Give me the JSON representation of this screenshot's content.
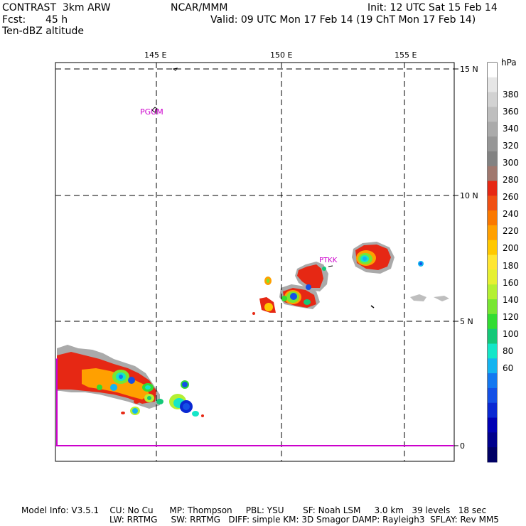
{
  "header": {
    "model": "CONTRAST  3km ARW",
    "org": "NCAR/MMM",
    "init": "Init: 12 UTC Sat 15 Feb 14",
    "fcst_label": "Fcst:",
    "fcst_value": "45 h",
    "valid": "Valid: 09 UTC Mon 17 Feb 14 (19 ChT Mon 17 Feb 14)",
    "field": "Ten-dBZ altitude"
  },
  "map": {
    "lon_labels": [
      "145 E",
      "150 E",
      "155 E"
    ],
    "lat_labels": [
      "15 N",
      "10 N",
      "5 N",
      "0"
    ],
    "stations": [
      "PGUM",
      "PTKK"
    ],
    "colors": {
      "grid": "#000000",
      "station_label": "#cc00cc",
      "border": "#cc00cc"
    }
  },
  "colorbar": {
    "unit": "hPa",
    "labels": [
      "380",
      "360",
      "340",
      "320",
      "300",
      "280",
      "260",
      "240",
      "220",
      "200",
      "180",
      "160",
      "140",
      "120",
      "100",
      "80",
      "60"
    ],
    "colors": [
      "#ffffff",
      "#e6e6e6",
      "#d2d2d2",
      "#bebebe",
      "#aaaaaa",
      "#969696",
      "#828282",
      "#a0786e",
      "#e62814",
      "#f05014",
      "#fa7800",
      "#ffa000",
      "#ffc800",
      "#ffe632",
      "#e6f032",
      "#b4f032",
      "#78e632",
      "#32dc32",
      "#14c878",
      "#14e6c8",
      "#14b4f0",
      "#1478f0",
      "#1450e6",
      "#0a28d2",
      "#0000b4",
      "#00008c",
      "#000064"
    ]
  },
  "footer": {
    "line1": "Model Info: V3.5.1    CU: No Cu      MP: Thompson     PBL: YSU       SF: Noah LSM     3.0 km   39 levels   18 sec",
    "line2": "LW: RRTMG     SW: RRTMG   DIFF: simple KM: 3D Smagor DAMP: Rayleigh3  SFLAY: Rev MM5"
  }
}
